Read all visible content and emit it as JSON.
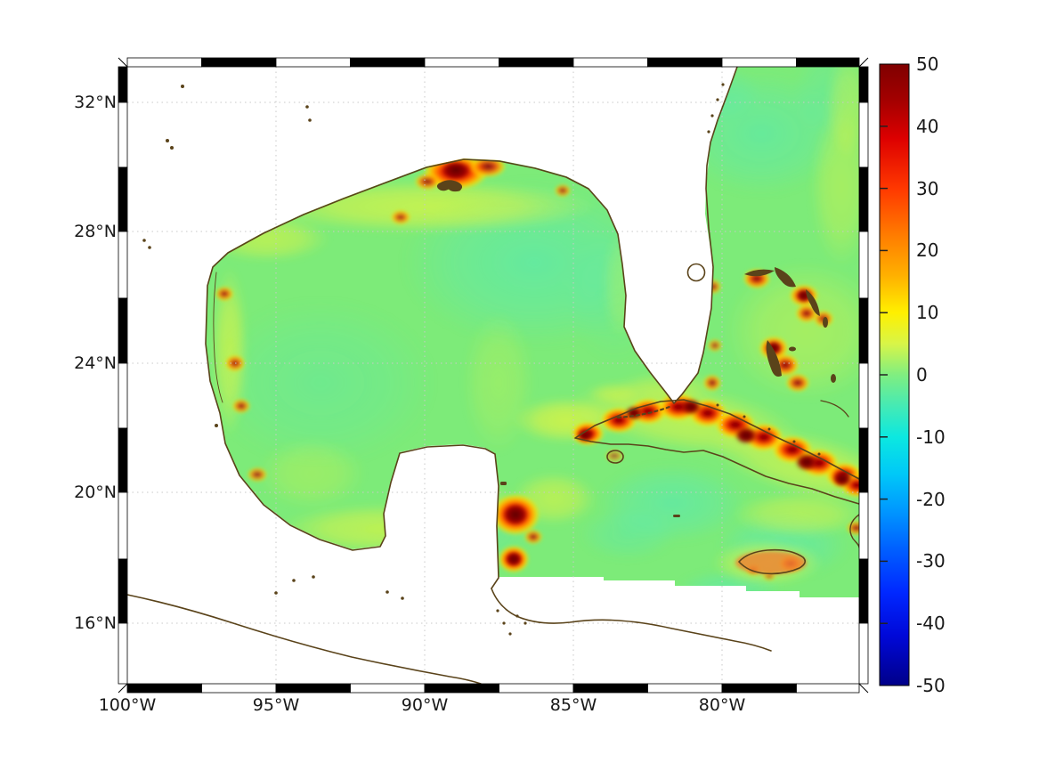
{
  "figure": {
    "kind": "geographic heatmap with colorbar",
    "background": "#ffffff"
  },
  "map": {
    "x_tick_labels": [
      "100°W",
      "95°W",
      "90°W",
      "85°W",
      "80°W"
    ],
    "y_tick_labels": [
      "32°N",
      "28°N",
      "24°N",
      "20°N",
      "16°N"
    ],
    "grid_style": "dotted gray",
    "frame_style": "black-white zebra border",
    "coastline_color": "#5a431a",
    "land_color": "#ffffff",
    "no_data_color": "#ffffff"
  },
  "colorbar": {
    "tick_labels": [
      "50",
      "40",
      "30",
      "20",
      "10",
      "0",
      "-10",
      "-20",
      "-30",
      "-40",
      "-50"
    ],
    "min": -50,
    "max": 50,
    "colormap": "jet",
    "top_color": "#7f0000",
    "bottom_color": "#000089"
  },
  "chart_data": {
    "type": "heatmap",
    "title": "",
    "region": "Gulf of Mexico, Florida, Bahamas and northwestern Caribbean (Cuba, Jamaica, Yucatan)",
    "x_tick_labels": [
      "100°W",
      "95°W",
      "90°W",
      "85°W",
      "80°W"
    ],
    "y_tick_labels": [
      "32°N",
      "28°N",
      "24°N",
      "20°N",
      "16°N"
    ],
    "lon_extent_deg_west": [
      100,
      75.5
    ],
    "lat_extent_deg_north": [
      14.1,
      33.2
    ],
    "value_range": [
      -50,
      50
    ],
    "colorbar_ticks": [
      50,
      40,
      30,
      20,
      10,
      0,
      -10,
      -20,
      -30,
      -40,
      -50
    ],
    "colormap": "jet",
    "open_ocean_background": "approximately 0 to +8 (light green) with patches of -5 to -12 (cyan) in the eastern Gulf, Atlantic and south of Cuba",
    "hotspots": [
      {
        "name": "Mississippi / Alabama coast",
        "approx_location": "89-87.5W, 30N",
        "value": "+35 to +50"
      },
      {
        "name": "Louisiana / Texas coastal spots",
        "approx_location": "97-93W along coast",
        "value": "+20 to +40"
      },
      {
        "name": "Cuba island band",
        "approx_location": "85-74W, 23-20N",
        "value": "+30 to +50 over and around the island"
      },
      {
        "name": "Bahamas banks (Grand Bahama, Abaco, Andros, Eleuthera)",
        "approx_location": "79-77W, 27-24N",
        "value": "+30 to +50"
      },
      {
        "name": "East of Yucatan (Cozumel / Belize)",
        "approx_location": "87W, 20-18N",
        "value": "+40 to +50"
      },
      {
        "name": "Jamaica",
        "approx_location": "78-76.5W, 18N",
        "value": "+20 to +45"
      },
      {
        "name": "Florida east coast spots",
        "approx_location": "80W, 30-24N",
        "value": "+25 to +40"
      },
      {
        "name": "Hispaniola west edge at map border",
        "approx_location": "75.7W, 19.5N",
        "value": "+30 to +45"
      }
    ],
    "no_data": "white over land and south of about 17.3N east of 87W (stepped boundary)",
    "legend_position": "vertical colorbar on right side"
  }
}
